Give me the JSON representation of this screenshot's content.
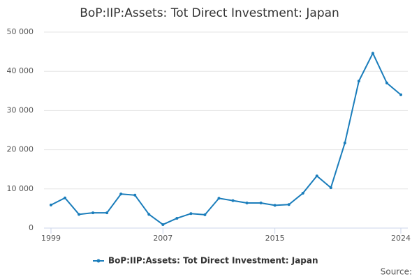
{
  "chart_data": {
    "type": "line",
    "title": "BoP:IIP:Assets: Tot Direct Investment: Japan",
    "x": [
      1999,
      2000,
      2001,
      2002,
      2003,
      2004,
      2005,
      2006,
      2007,
      2008,
      2009,
      2010,
      2011,
      2012,
      2013,
      2014,
      2015,
      2016,
      2017,
      2018,
      2019,
      2020,
      2021,
      2022,
      2023,
      2024
    ],
    "series": [
      {
        "name": "BoP:IIP:Assets: Tot Direct Investment: Japan",
        "color": "#1a7dbb",
        "values": [
          5900,
          7700,
          3500,
          3900,
          3900,
          8700,
          8400,
          3500,
          900,
          2500,
          3700,
          3400,
          7600,
          7000,
          6400,
          6400,
          5800,
          6000,
          8900,
          13300,
          10300,
          21700,
          37500,
          44600,
          37000,
          34000
        ]
      }
    ],
    "xlim": [
      1999,
      2024
    ],
    "xticks": [
      1999,
      2007,
      2015,
      2024
    ],
    "ylim": [
      0,
      50000
    ],
    "yticks": [
      0,
      {
        "value": 10000,
        "label": "10 000"
      },
      {
        "value": 20000,
        "label": "20 000"
      },
      {
        "value": 30000,
        "label": "30 000"
      },
      {
        "value": 40000,
        "label": "40 000"
      },
      {
        "value": 50000,
        "label": "50 000"
      }
    ],
    "grid": true,
    "source": "Source:"
  }
}
